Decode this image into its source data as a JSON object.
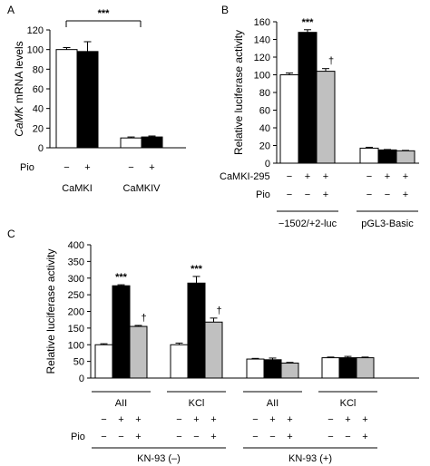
{
  "colors": {
    "none": "#ffffff",
    "pio_minus": "#000000",
    "pio_plus": "#c0c0c0",
    "stroke": "#000000"
  },
  "chart_data": [
    {
      "id": "A",
      "panel_label": "A",
      "type": "bar",
      "ylabel_italic": "CaMK",
      "ylabel_rest": " mRNA levels",
      "ylim": [
        0,
        120
      ],
      "yticks": [
        "0",
        "20",
        "40",
        "60",
        "80",
        "100",
        "120"
      ],
      "row_label": "Pio",
      "categories": [
        {
          "label": "CaMKI",
          "bars": [
            {
              "pio": "−",
              "value": 100,
              "error": 2,
              "color": "white"
            },
            {
              "pio": "+",
              "value": 98,
              "error": 10,
              "color": "black"
            }
          ]
        },
        {
          "label": "CaMKIV",
          "bars": [
            {
              "pio": "−",
              "value": 10,
              "error": 1,
              "color": "white"
            },
            {
              "pio": "+",
              "value": 11,
              "error": 1,
              "color": "black"
            }
          ]
        }
      ],
      "annotations": {
        "bracket_label": "***"
      }
    },
    {
      "id": "B",
      "panel_label": "B",
      "type": "bar",
      "ylabel": "Relative luciferase activity",
      "ylim": [
        0,
        160
      ],
      "yticks": [
        "0",
        "20",
        "40",
        "60",
        "80",
        "100",
        "120",
        "140",
        "160"
      ],
      "row_labels": [
        "CaMKI-295",
        "Pio"
      ],
      "groups": [
        {
          "label": "−1502/+2-luc",
          "bars": [
            {
              "camki": "−",
              "pio": "−",
              "value": 100,
              "error": 2,
              "color": "white",
              "mark": ""
            },
            {
              "camki": "+",
              "pio": "−",
              "value": 148,
              "error": 3,
              "color": "black",
              "mark": "***"
            },
            {
              "camki": "+",
              "pio": "+",
              "value": 104,
              "error": 3,
              "color": "gray",
              "mark": "†"
            }
          ]
        },
        {
          "label": "pGL3-Basic",
          "bars": [
            {
              "camki": "−",
              "pio": "−",
              "value": 17,
              "error": 1,
              "color": "white",
              "mark": ""
            },
            {
              "camki": "+",
              "pio": "−",
              "value": 15,
              "error": 0.5,
              "color": "black",
              "mark": ""
            },
            {
              "camki": "+",
              "pio": "+",
              "value": 14,
              "error": 0.5,
              "color": "gray",
              "mark": ""
            }
          ]
        }
      ]
    },
    {
      "id": "C",
      "panel_label": "C",
      "type": "bar",
      "ylabel": "Relative luciferase activity",
      "ylim": [
        0,
        400
      ],
      "yticks": [
        "0",
        "50",
        "100",
        "150",
        "200",
        "250",
        "300",
        "350",
        "400"
      ],
      "row_label": "Pio",
      "groups": [
        {
          "label": "AII",
          "kn": 0,
          "bars": [
            {
              "stim": "−",
              "pio": "−",
              "value": 100,
              "error": 3,
              "color": "white",
              "mark": ""
            },
            {
              "stim": "+",
              "pio": "−",
              "value": 277,
              "error": 3,
              "color": "black",
              "mark": "***"
            },
            {
              "stim": "+",
              "pio": "+",
              "value": 155,
              "error": 3,
              "color": "gray",
              "mark": "†"
            }
          ]
        },
        {
          "label": "KCl",
          "kn": 0,
          "bars": [
            {
              "stim": "−",
              "pio": "−",
              "value": 100,
              "error": 5,
              "color": "white",
              "mark": ""
            },
            {
              "stim": "+",
              "pio": "−",
              "value": 285,
              "error": 20,
              "color": "black",
              "mark": "***"
            },
            {
              "stim": "+",
              "pio": "+",
              "value": 168,
              "error": 12,
              "color": "gray",
              "mark": "†"
            }
          ]
        },
        {
          "label": "AII",
          "kn": 1,
          "bars": [
            {
              "stim": "−",
              "pio": "−",
              "value": 57,
              "error": 2,
              "color": "white",
              "mark": ""
            },
            {
              "stim": "+",
              "pio": "−",
              "value": 55,
              "error": 5,
              "color": "black",
              "mark": ""
            },
            {
              "stim": "+",
              "pio": "+",
              "value": 45,
              "error": 2,
              "color": "gray",
              "mark": ""
            }
          ]
        },
        {
          "label": "KCl",
          "kn": 1,
          "bars": [
            {
              "stim": "−",
              "pio": "−",
              "value": 61,
              "error": 2,
              "color": "white",
              "mark": ""
            },
            {
              "stim": "+",
              "pio": "−",
              "value": 61,
              "error": 4,
              "color": "black",
              "mark": ""
            },
            {
              "stim": "+",
              "pio": "+",
              "value": 61,
              "error": 2,
              "color": "gray",
              "mark": ""
            }
          ]
        }
      ],
      "kn_groups": [
        "KN-93 (–)",
        "KN-93 (+)"
      ]
    }
  ]
}
